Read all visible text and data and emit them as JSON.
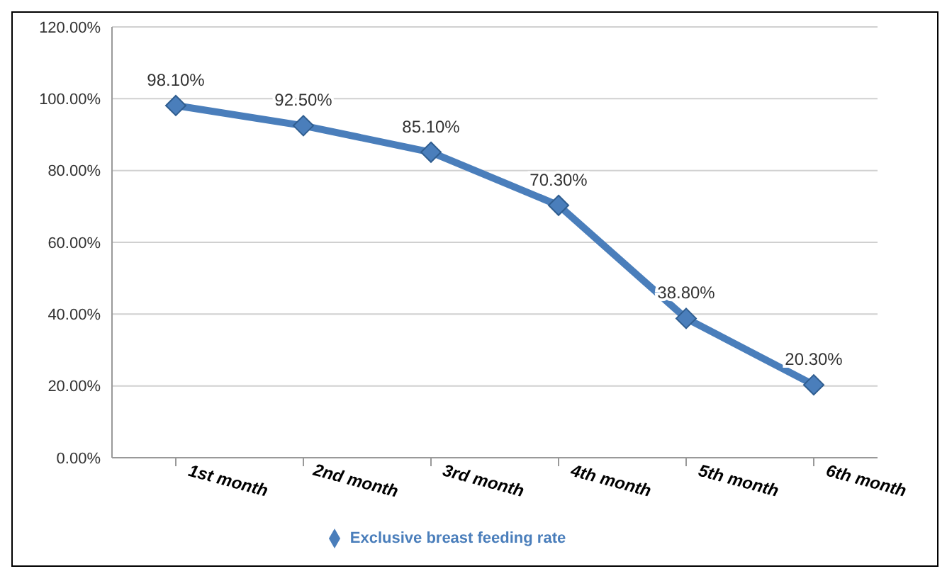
{
  "chart_data": {
    "type": "line",
    "categories": [
      "1st month",
      "2nd month",
      "3rd month",
      "4th month",
      "5th month",
      "6th month"
    ],
    "series": [
      {
        "name": "Exclusive breast feeding rate",
        "color": "#4a7ebb",
        "values": [
          98.1,
          92.5,
          85.1,
          70.3,
          38.8,
          20.3
        ],
        "value_labels": [
          "98.10%",
          "92.50%",
          "85.10%",
          "70.30%",
          "38.80%",
          "20.30%"
        ]
      }
    ],
    "ylim": [
      0,
      120
    ],
    "yticks": [
      {
        "value": 0,
        "label": "0.00%"
      },
      {
        "value": 20,
        "label": "20.00%"
      },
      {
        "value": 40,
        "label": "40.00%"
      },
      {
        "value": 60,
        "label": "60.00%"
      },
      {
        "value": 80,
        "label": "80.00%"
      },
      {
        "value": 100,
        "label": "100.00%"
      },
      {
        "value": 120,
        "label": "120.00%"
      }
    ],
    "grid": "y",
    "legend": "bottom",
    "marker": "diamond",
    "line_style": "solid"
  }
}
